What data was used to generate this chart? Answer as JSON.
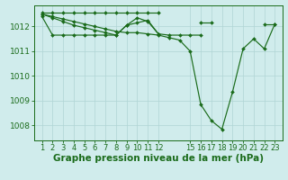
{
  "bg_color": "#d0ecec",
  "line_color": "#1a6b1a",
  "grid_color": "#b0d4d4",
  "xlabel": "Graphe pression niveau de la mer (hPa)",
  "xlabel_fontsize": 7.5,
  "ylabel_fontsize": 6.5,
  "tick_fontsize": 6.0,
  "ylim": [
    1007.4,
    1012.85
  ],
  "yticks": [
    1008,
    1009,
    1010,
    1011,
    1012
  ],
  "xlim": [
    0.3,
    23.7
  ],
  "series": [
    {
      "x": [
        1,
        2,
        3,
        4,
        5,
        6,
        7,
        8,
        9,
        10,
        11,
        12
      ],
      "y": [
        1012.55,
        1012.55,
        1012.55,
        1012.55,
        1012.55,
        1012.55,
        1012.55,
        1012.55,
        1012.55,
        1012.55,
        1012.55,
        1012.55
      ]
    },
    {
      "x": [
        16,
        17
      ],
      "y": [
        1012.15,
        1012.15
      ]
    },
    {
      "x": [
        22,
        23
      ],
      "y": [
        1012.1,
        1012.1
      ]
    },
    {
      "x": [
        1,
        2,
        3,
        4,
        5,
        6,
        7,
        8,
        9,
        10,
        11,
        12
      ],
      "y": [
        1012.4,
        1011.65,
        1011.65,
        1011.65,
        1011.65,
        1011.65,
        1011.65,
        1011.65,
        1012.05,
        1012.15,
        1012.25,
        1011.7
      ]
    },
    {
      "x": [
        1,
        2,
        3,
        4,
        5,
        6,
        7,
        8,
        9,
        10,
        11,
        12,
        13,
        14,
        15,
        16
      ],
      "y": [
        1012.5,
        1012.35,
        1012.2,
        1012.05,
        1011.95,
        1011.85,
        1011.75,
        1011.65,
        1012.05,
        1012.35,
        1012.2,
        1011.7,
        1011.65,
        1011.65,
        1011.65,
        1011.65
      ]
    },
    {
      "x": [
        1,
        2,
        3,
        4,
        5,
        6,
        7,
        8,
        9,
        10,
        11,
        12,
        13,
        14,
        15,
        16,
        17,
        18,
        19,
        20,
        21,
        22,
        23
      ],
      "y": [
        1012.5,
        1012.4,
        1012.3,
        1012.2,
        1012.1,
        1012.0,
        1011.9,
        1011.8,
        1011.75,
        1011.75,
        1011.7,
        1011.65,
        1011.55,
        1011.45,
        1011.0,
        1008.85,
        1008.2,
        1007.85,
        1009.35,
        1011.1,
        1011.5,
        1011.1,
        1012.1
      ]
    }
  ],
  "xtick_positions": [
    1,
    2,
    3,
    4,
    5,
    6,
    7,
    8,
    9,
    10,
    11,
    12,
    15,
    16,
    17,
    18,
    19,
    20,
    21,
    22,
    23
  ],
  "xtick_labels": [
    "1",
    "2",
    "3",
    "4",
    "5",
    "6",
    "7",
    "8",
    "9",
    "10",
    "11",
    "12",
    "15",
    "16",
    "17",
    "18",
    "19",
    "20",
    "21",
    "22",
    "23"
  ]
}
